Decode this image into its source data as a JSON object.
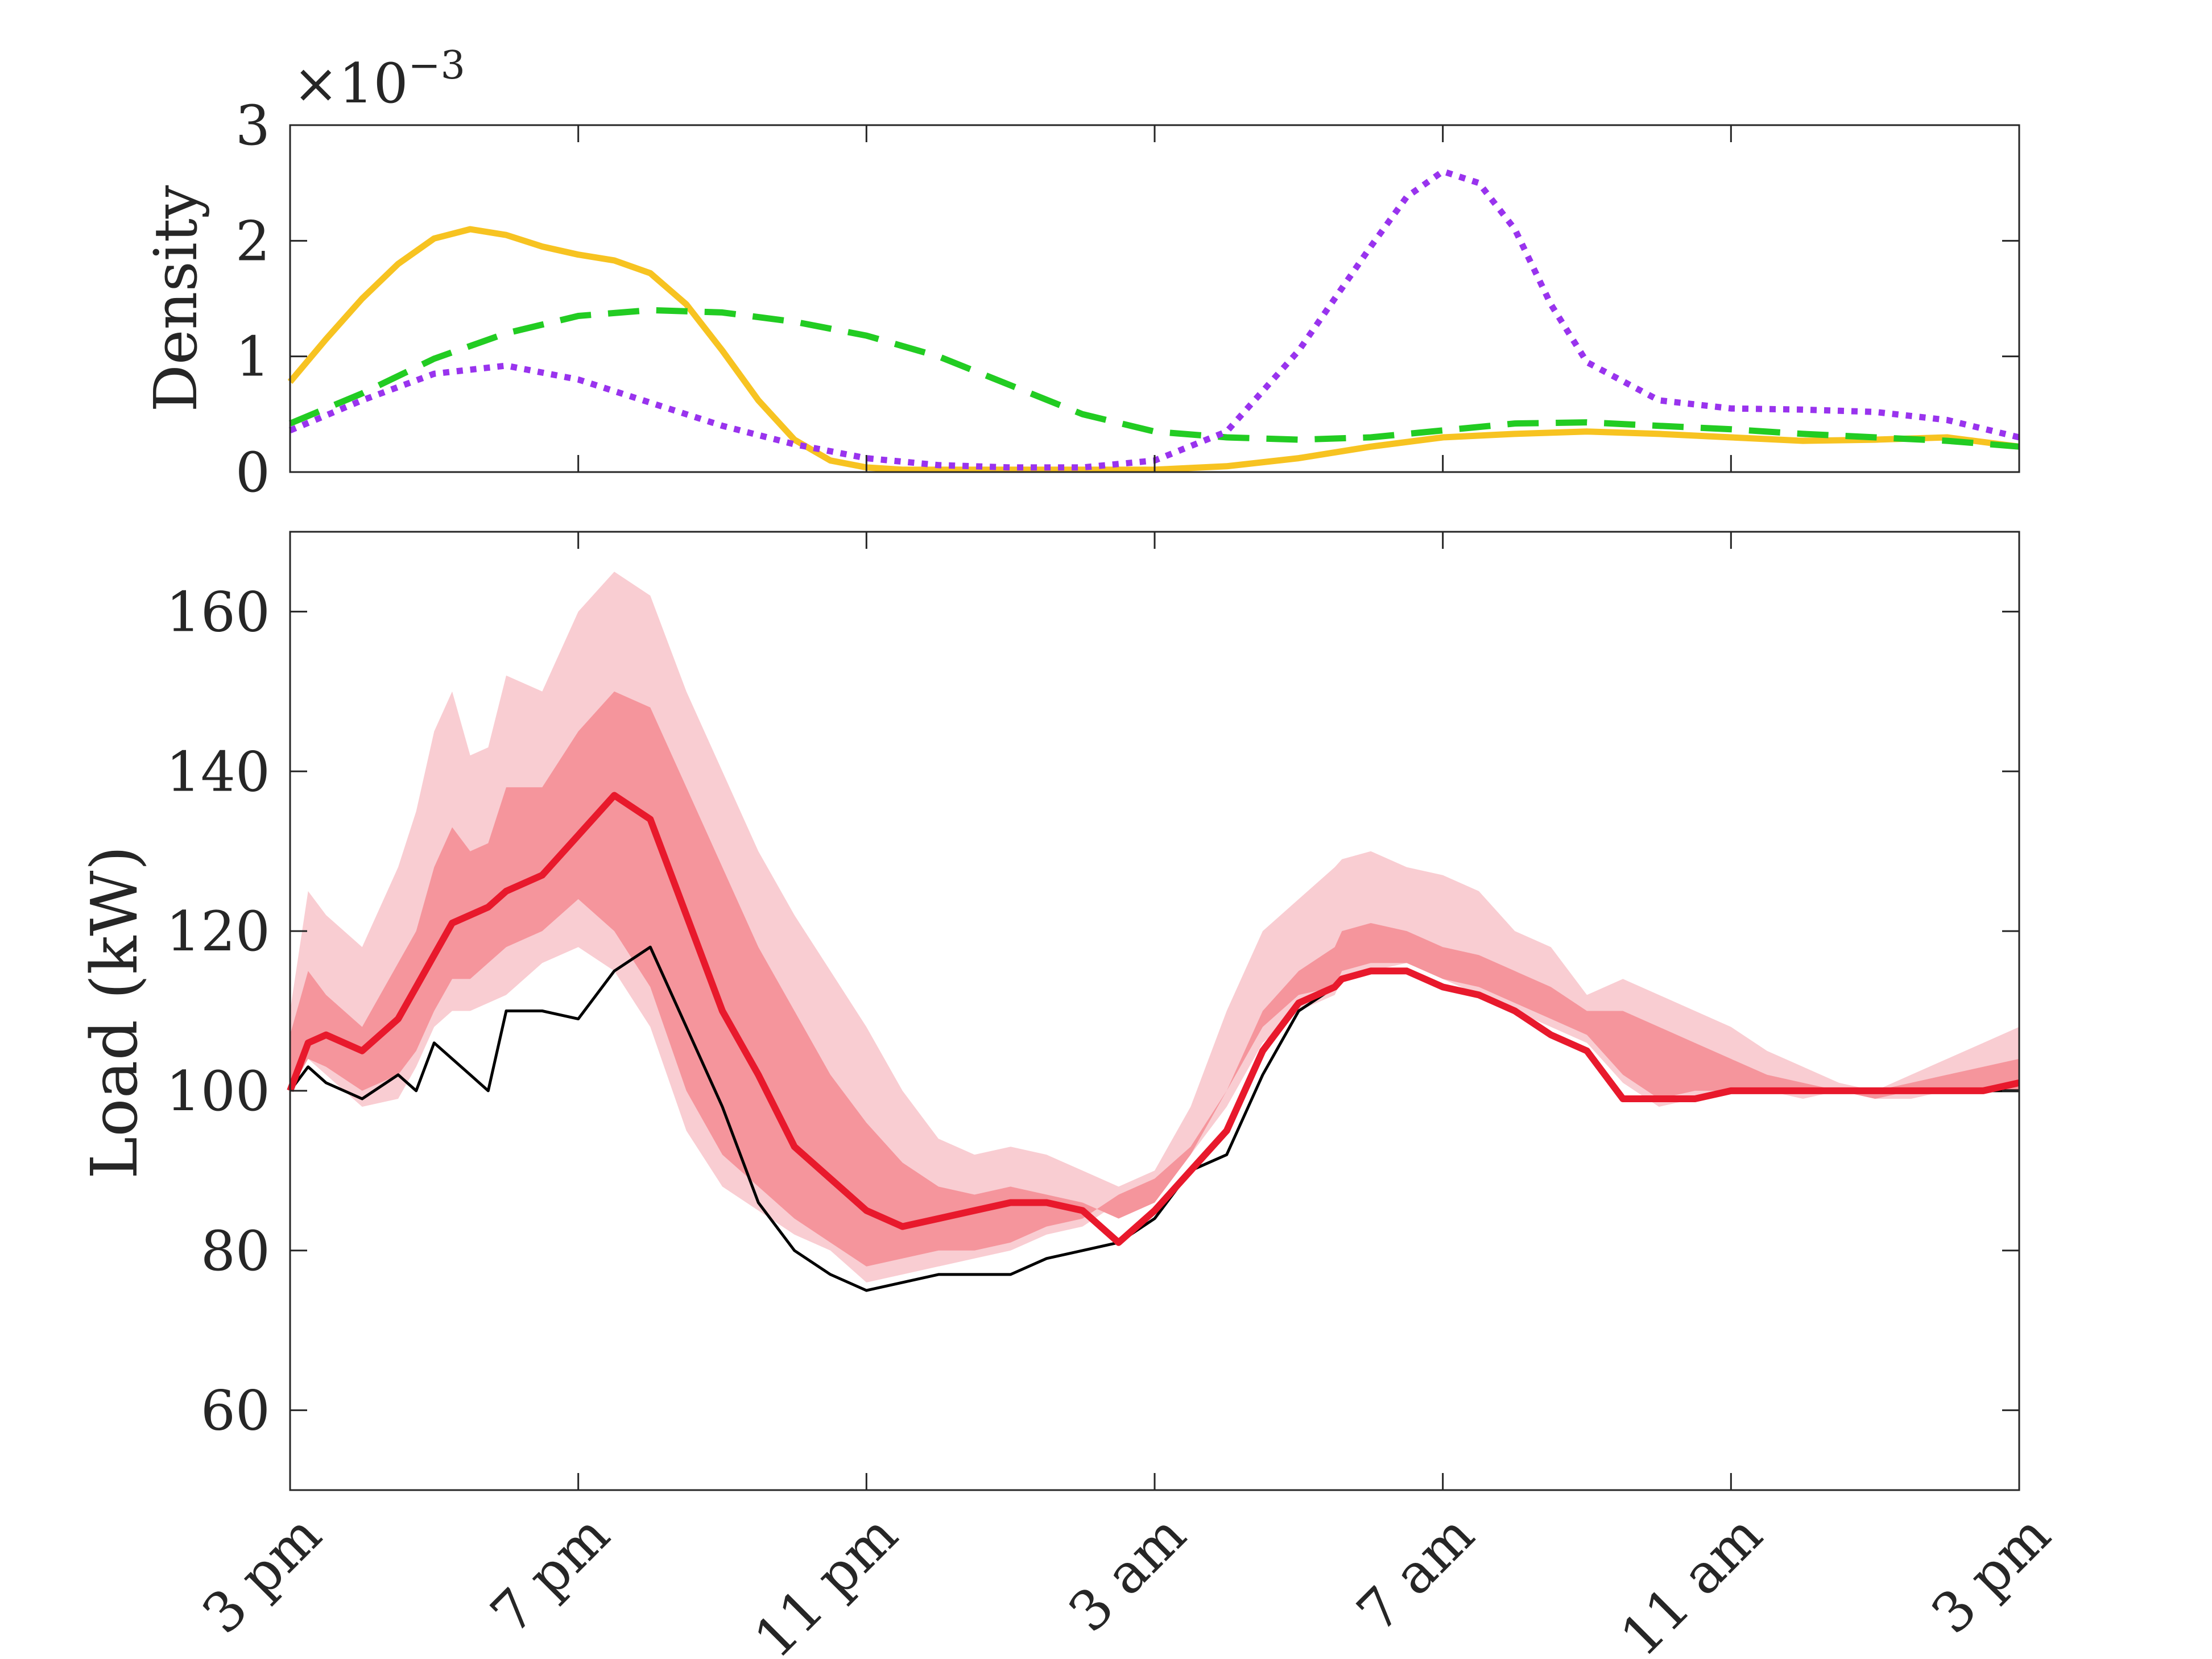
{
  "chart_data": [
    {
      "type": "line",
      "panel": "density",
      "title": "",
      "xlabel": "",
      "ylabel": "Density",
      "exponent_label": "×10",
      "exponent_power": "−3",
      "xlim": [
        0,
        24
      ],
      "ylim": [
        0,
        3
      ],
      "yticks": [
        0,
        1,
        2,
        3
      ],
      "yticklabels": [
        "0",
        "1",
        "2",
        "3"
      ],
      "grid": false,
      "series": [
        {
          "name": "yellow-solid",
          "color": "#f7c321",
          "dash": "solid",
          "x": [
            0,
            0.5,
            1,
            1.5,
            2,
            2.5,
            3,
            3.5,
            4,
            4.5,
            5,
            5.5,
            6,
            6.5,
            7,
            7.5,
            8,
            8.5,
            9,
            10,
            11,
            12,
            13,
            14,
            15,
            16,
            17,
            18,
            19,
            20,
            21,
            22,
            23,
            24
          ],
          "values": [
            0.78,
            1.15,
            1.5,
            1.8,
            2.02,
            2.1,
            2.05,
            1.95,
            1.88,
            1.83,
            1.72,
            1.45,
            1.05,
            0.62,
            0.28,
            0.1,
            0.04,
            0.02,
            0.02,
            0.02,
            0.02,
            0.02,
            0.05,
            0.12,
            0.22,
            0.3,
            0.33,
            0.35,
            0.33,
            0.3,
            0.27,
            0.28,
            0.3,
            0.22
          ]
        },
        {
          "name": "green-dashed",
          "color": "#22cc22",
          "dash": "dashed",
          "x": [
            0,
            1,
            2,
            3,
            4,
            5,
            6,
            7,
            8,
            9,
            10,
            11,
            12,
            13,
            14,
            15,
            16,
            17,
            18,
            19,
            20,
            21,
            22,
            23,
            24
          ],
          "values": [
            0.42,
            0.68,
            0.98,
            1.2,
            1.35,
            1.4,
            1.38,
            1.3,
            1.18,
            1.0,
            0.75,
            0.5,
            0.35,
            0.3,
            0.28,
            0.3,
            0.36,
            0.42,
            0.43,
            0.4,
            0.37,
            0.33,
            0.3,
            0.27,
            0.22
          ]
        },
        {
          "name": "purple-dotted",
          "color": "#9933ee",
          "dash": "dotted",
          "x": [
            0,
            1,
            2,
            3,
            4,
            5,
            6,
            7,
            8,
            9,
            10,
            11,
            12,
            13,
            14,
            15,
            15.5,
            16,
            16.5,
            17,
            17.5,
            18,
            19,
            20,
            21,
            22,
            23,
            24
          ],
          "values": [
            0.36,
            0.62,
            0.85,
            0.92,
            0.8,
            0.6,
            0.4,
            0.24,
            0.12,
            0.06,
            0.04,
            0.04,
            0.1,
            0.35,
            1.05,
            1.95,
            2.38,
            2.6,
            2.5,
            2.1,
            1.45,
            0.95,
            0.62,
            0.55,
            0.54,
            0.52,
            0.45,
            0.3
          ]
        }
      ]
    },
    {
      "type": "area",
      "panel": "load",
      "title": "",
      "xlabel": "",
      "ylabel": "Load (kW)",
      "xlim": [
        0,
        24
      ],
      "ylim": [
        50,
        170
      ],
      "yticks": [
        60,
        80,
        100,
        120,
        140,
        160
      ],
      "yticklabels": [
        "60",
        "80",
        "100",
        "120",
        "140",
        "160"
      ],
      "xticks": [
        0,
        4,
        8,
        12,
        16,
        20,
        24
      ],
      "categories": [
        "3 pm",
        "7 pm",
        "11 pm",
        "3 am",
        "7 am",
        "11 am",
        "3 pm"
      ],
      "grid": false,
      "x": [
        0,
        0.25,
        0.5,
        1,
        1.5,
        1.75,
        2,
        2.25,
        2.5,
        2.75,
        3,
        3.5,
        4,
        4.5,
        5,
        5.5,
        6,
        6.5,
        7,
        7.5,
        8,
        8.5,
        9,
        9.5,
        10,
        10.5,
        11,
        11.5,
        12,
        12.5,
        13,
        13.5,
        14,
        14.5,
        14.6,
        15,
        15.5,
        16,
        16.5,
        17,
        17.5,
        18,
        18.5,
        19,
        19.5,
        20,
        20.5,
        21,
        21.5,
        22,
        22.5,
        23,
        23.5,
        24
      ],
      "series": [
        {
          "name": "outer-band-upper",
          "color": "#f9cdd2",
          "values": [
            110,
            125,
            122,
            118,
            128,
            135,
            145,
            150,
            142,
            143,
            152,
            150,
            160,
            165,
            162,
            150,
            140,
            130,
            122,
            115,
            108,
            100,
            94,
            92,
            93,
            92,
            90,
            88,
            90,
            98,
            110,
            120,
            124,
            128,
            129,
            130,
            128,
            127,
            125,
            120,
            118,
            112,
            114,
            112,
            110,
            108,
            105,
            103,
            101,
            100,
            102,
            104,
            106,
            108
          ]
        },
        {
          "name": "outer-band-lower",
          "color": "#f9cdd2",
          "values": [
            100,
            104,
            102,
            98,
            99,
            103,
            108,
            110,
            110,
            111,
            112,
            116,
            118,
            115,
            108,
            95,
            88,
            85,
            82,
            80,
            76,
            77,
            78,
            79,
            80,
            82,
            83,
            86,
            88,
            92,
            98,
            106,
            110,
            112,
            114,
            115,
            116,
            114,
            112,
            110,
            108,
            106,
            101,
            98,
            99,
            100,
            100,
            99,
            100,
            99,
            99,
            100,
            100,
            100
          ]
        },
        {
          "name": "inner-band-upper",
          "color": "#f5959c",
          "values": [
            107,
            115,
            112,
            108,
            116,
            120,
            128,
            133,
            130,
            131,
            138,
            138,
            145,
            150,
            148,
            138,
            128,
            118,
            110,
            102,
            96,
            91,
            88,
            87,
            88,
            87,
            86,
            84,
            86,
            92,
            100,
            110,
            115,
            118,
            120,
            121,
            120,
            118,
            117,
            115,
            113,
            110,
            110,
            108,
            106,
            104,
            102,
            101,
            100,
            100,
            101,
            102,
            103,
            104
          ]
        },
        {
          "name": "inner-band-lower",
          "color": "#f5959c",
          "values": [
            100,
            104,
            103,
            100,
            102,
            105,
            110,
            114,
            114,
            116,
            118,
            120,
            124,
            120,
            113,
            100,
            92,
            88,
            84,
            81,
            78,
            79,
            80,
            80,
            81,
            83,
            84,
            87,
            89,
            93,
            100,
            108,
            112,
            113,
            115,
            116,
            116,
            114,
            113,
            111,
            109,
            107,
            102,
            99,
            100,
            100,
            100,
            100,
            100,
            99,
            100,
            100,
            100,
            100
          ]
        },
        {
          "name": "median",
          "color": "#e8192c",
          "values": [
            100,
            106,
            107,
            105,
            109,
            113,
            117,
            121,
            122,
            123,
            125,
            127,
            132,
            137,
            134,
            122,
            110,
            102,
            93,
            89,
            85,
            83,
            84,
            85,
            86,
            86,
            85,
            81,
            85,
            90,
            95,
            105,
            111,
            113,
            114,
            115,
            115,
            113,
            112,
            110,
            107,
            105,
            99,
            99,
            99,
            100,
            100,
            100,
            100,
            100,
            100,
            100,
            100,
            101
          ]
        },
        {
          "name": "actual",
          "color": "#000000",
          "values": [
            100,
            103,
            101,
            99,
            102,
            100,
            106,
            104,
            102,
            100,
            110,
            110,
            109,
            115,
            118,
            108,
            98,
            86,
            80,
            77,
            75,
            76,
            77,
            77,
            77,
            79,
            80,
            81,
            84,
            90,
            92,
            102,
            110,
            113,
            114,
            115,
            115,
            113,
            112,
            110,
            107,
            105,
            99,
            99,
            99,
            100,
            100,
            100,
            100,
            100,
            100,
            100,
            100,
            100
          ]
        }
      ]
    }
  ]
}
